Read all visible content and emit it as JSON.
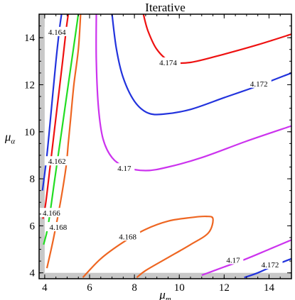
{
  "chart_data": {
    "type": "contour",
    "title": "Iterative",
    "xlabel": {
      "base": "μ",
      "sub": "m"
    },
    "ylabel": {
      "base": "μ",
      "sub": "α"
    },
    "xlim": [
      3.75,
      15
    ],
    "ylim": [
      3.75,
      15
    ],
    "xticks": [
      4,
      6,
      8,
      10,
      12,
      14
    ],
    "yticks": [
      4,
      6,
      8,
      10,
      12,
      14
    ],
    "excluded_region_color": "#c8c8c8",
    "contours": [
      {
        "level": "4.164",
        "color": "#2233dd",
        "points": [
          [
            3.9,
            7.5
          ],
          [
            4.1,
            9.0
          ],
          [
            4.3,
            11.0
          ],
          [
            4.5,
            13.0
          ],
          [
            4.65,
            14.3
          ],
          [
            4.75,
            15.0
          ]
        ],
        "label_at": [
          4.55,
          14.25
        ]
      },
      {
        "level": "4.166",
        "color": "#ee1111",
        "points": [
          [
            3.92,
            6.3
          ],
          [
            4.05,
            7.0
          ],
          [
            4.3,
            9.0
          ],
          [
            4.55,
            11.0
          ],
          [
            4.8,
            13.0
          ],
          [
            4.95,
            14.3
          ],
          [
            5.05,
            15.0
          ]
        ],
        "label_at": [
          4.3,
          6.55
        ]
      },
      {
        "level": "4.162",
        "color": "#22dd22",
        "points": [
          [
            3.95,
            5.2
          ],
          [
            4.15,
            6.0
          ],
          [
            4.45,
            8.0
          ],
          [
            4.75,
            10.0
          ],
          [
            5.05,
            12.0
          ],
          [
            5.35,
            14.0
          ],
          [
            5.5,
            15.0
          ]
        ],
        "label_at": [
          4.55,
          8.75
        ]
      },
      {
        "level": "4.168",
        "color": "#ee6622",
        "points": [
          [
            5.6,
            15.0
          ],
          [
            5.5,
            13.5
          ],
          [
            5.3,
            12.0
          ],
          [
            5.15,
            10.5
          ],
          [
            5.05,
            9.5
          ],
          [
            4.95,
            8.5
          ],
          [
            4.7,
            7.0
          ],
          [
            4.4,
            5.5
          ],
          [
            4.1,
            4.2
          ]
        ],
        "label_at": [
          4.6,
          5.95
        ]
      },
      {
        "level": "4.168",
        "color": "#ee6622",
        "points": [
          [
            5.7,
            3.8
          ],
          [
            6.5,
            4.6
          ],
          [
            7.5,
            5.3
          ],
          [
            8.5,
            5.85
          ],
          [
            9.5,
            6.2
          ],
          [
            10.5,
            6.35
          ],
          [
            11.2,
            6.4
          ],
          [
            11.5,
            6.3
          ],
          [
            11.3,
            5.7
          ],
          [
            10.5,
            5.2
          ],
          [
            9.5,
            4.65
          ],
          [
            8.5,
            4.1
          ],
          [
            8.1,
            3.8
          ]
        ],
        "label_at": [
          7.7,
          5.55
        ]
      },
      {
        "level": "4.17",
        "color": "#cc33ee",
        "points": [
          [
            6.3,
            15.0
          ],
          [
            6.3,
            13.0
          ],
          [
            6.4,
            11.0
          ],
          [
            6.6,
            9.7
          ],
          [
            7.0,
            8.9
          ],
          [
            7.6,
            8.5
          ],
          [
            8.5,
            8.35
          ],
          [
            9.5,
            8.5
          ],
          [
            11.0,
            8.9
          ],
          [
            13.0,
            9.6
          ],
          [
            15.0,
            10.25
          ]
        ],
        "label_at": [
          7.55,
          8.45
        ]
      },
      {
        "level": "4.17",
        "color": "#cc33ee",
        "points": [
          [
            11.0,
            3.9
          ],
          [
            12.0,
            4.25
          ],
          [
            13.0,
            4.6
          ],
          [
            14.0,
            5.0
          ],
          [
            15.0,
            5.4
          ]
        ],
        "label_at": [
          12.4,
          4.55
        ]
      },
      {
        "level": "4.172",
        "color": "#2233dd",
        "points": [
          [
            7.0,
            15.0
          ],
          [
            7.2,
            13.5
          ],
          [
            7.5,
            12.3
          ],
          [
            8.0,
            11.3
          ],
          [
            8.6,
            10.8
          ],
          [
            9.3,
            10.75
          ],
          [
            10.5,
            10.95
          ],
          [
            12.0,
            11.45
          ],
          [
            13.5,
            11.95
          ],
          [
            15.0,
            12.5
          ]
        ],
        "label_at": [
          13.55,
          12.05
        ]
      },
      {
        "level": "4.172",
        "color": "#2233dd",
        "points": [
          [
            12.9,
            3.8
          ],
          [
            13.5,
            4.0
          ],
          [
            14.2,
            4.3
          ],
          [
            15.0,
            4.6
          ]
        ],
        "label_at": [
          14.05,
          4.35
        ]
      },
      {
        "level": "4.174",
        "color": "#ee1111",
        "points": [
          [
            8.4,
            15.0
          ],
          [
            8.6,
            14.3
          ],
          [
            9.0,
            13.5
          ],
          [
            9.6,
            13.0
          ],
          [
            10.5,
            12.95
          ],
          [
            12.0,
            13.3
          ],
          [
            13.5,
            13.7
          ],
          [
            15.0,
            14.15
          ]
        ],
        "label_at": [
          9.5,
          12.95
        ]
      }
    ]
  }
}
